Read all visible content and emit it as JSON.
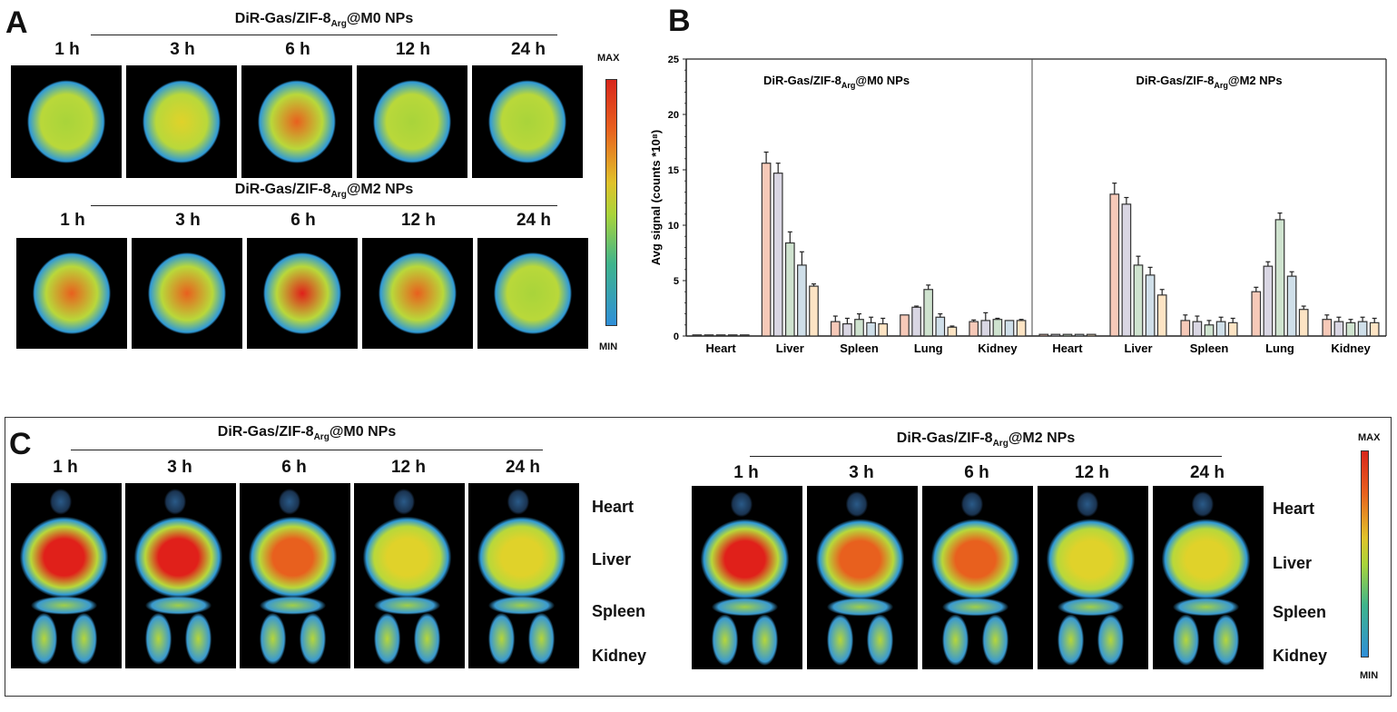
{
  "panel_a": {
    "letter": "A",
    "groups": [
      {
        "title_main": "DiR-Gas/ZIF-8",
        "title_sub": "Arg",
        "title_tail": "@M0 NPs",
        "times": [
          "1 h",
          "3 h",
          "6 h",
          "12 h",
          "24 h"
        ],
        "intensity": [
          0.45,
          0.6,
          0.75,
          0.4,
          0.35
        ]
      },
      {
        "title_main": "DiR-Gas/ZIF-8",
        "title_sub": "Arg",
        "title_tail": "@M2 NPs",
        "times": [
          "1 h",
          "3 h",
          "6 h",
          "12 h",
          "24 h"
        ],
        "intensity": [
          0.7,
          0.85,
          0.95,
          0.8,
          0.4
        ]
      }
    ],
    "scale": {
      "max_label": "MAX",
      "min_label": "MIN"
    }
  },
  "panel_b": {
    "letter": "B"
  },
  "panel_c": {
    "letter": "C",
    "groups": [
      {
        "title_main": "DiR-Gas/ZIF-8",
        "title_sub": "Arg",
        "title_tail": "@M0 NPs",
        "times": [
          "1 h",
          "3 h",
          "6 h",
          "12 h",
          "24 h"
        ],
        "liver_intensity": [
          1.0,
          0.95,
          0.8,
          0.65,
          0.55
        ]
      },
      {
        "title_main": "DiR-Gas/ZIF-8",
        "title_sub": "Arg",
        "title_tail": "@M2 NPs",
        "times": [
          "1 h",
          "3 h",
          "6 h",
          "12 h",
          "24 h"
        ],
        "liver_intensity": [
          0.9,
          0.85,
          0.7,
          0.6,
          0.5
        ]
      }
    ],
    "organs": [
      "Heart",
      "Liver",
      "Spleen",
      "Kidney"
    ],
    "scale": {
      "max_label": "MAX",
      "min_label": "MIN"
    }
  },
  "chart_data": {
    "type": "bar",
    "title": "",
    "xlabel": "",
    "ylabel": "Avg signal (counts *10⁸)",
    "ylim": [
      0,
      25
    ],
    "yticks": [
      0,
      5,
      10,
      15,
      20,
      25
    ],
    "grid": false,
    "legend": "none",
    "series_names": [
      "1 h",
      "3 h",
      "6 h",
      "12 h",
      "24 h"
    ],
    "series_colors": [
      "#f6c9b8",
      "#d9d6e3",
      "#cfe3cf",
      "#cfdfe9",
      "#fde4c4"
    ],
    "series_edge_colors": [
      "#c0573a",
      "#555566",
      "#4d7a52",
      "#4f6f86",
      "#c08a44"
    ],
    "panels": [
      {
        "name": "DiR-Gas/ZIF-8Arg@M0 NPs",
        "title_main": "DiR-Gas/ZIF-8",
        "title_sub": "Arg",
        "title_tail": "@M0 NPs",
        "categories": [
          "Heart",
          "Liver",
          "Spleen",
          "Lung",
          "Kidney"
        ],
        "values": [
          [
            0.1,
            0.1,
            0.1,
            0.1,
            0.1
          ],
          [
            15.6,
            14.7,
            8.4,
            6.4,
            4.5
          ],
          [
            1.3,
            1.1,
            1.5,
            1.2,
            1.1
          ],
          [
            1.9,
            2.6,
            4.2,
            1.7,
            0.8
          ],
          [
            1.3,
            1.4,
            1.5,
            1.4,
            1.4
          ]
        ],
        "errors": [
          [
            0.05,
            0.05,
            0.05,
            0.05,
            0.05
          ],
          [
            1.0,
            0.9,
            1.0,
            1.2,
            0.2
          ],
          [
            0.5,
            0.5,
            0.5,
            0.5,
            0.5
          ],
          [
            0.05,
            0.1,
            0.4,
            0.3,
            0.1
          ],
          [
            0.15,
            0.7,
            0.1,
            0.05,
            0.1
          ]
        ]
      },
      {
        "name": "DiR-Gas/ZIF-8Arg@M2 NPs",
        "title_main": "DiR-Gas/ZIF-8",
        "title_sub": "Arg",
        "title_tail": "@M2 NPs",
        "categories": [
          "Heart",
          "Liver",
          "Spleen",
          "Lung",
          "Kidney"
        ],
        "values": [
          [
            0.15,
            0.15,
            0.15,
            0.15,
            0.15
          ],
          [
            12.8,
            11.9,
            6.4,
            5.5,
            3.7
          ],
          [
            1.4,
            1.3,
            1.0,
            1.3,
            1.2
          ],
          [
            4.0,
            6.3,
            10.5,
            5.4,
            2.4
          ],
          [
            1.5,
            1.3,
            1.2,
            1.3,
            1.2
          ]
        ],
        "errors": [
          [
            0.05,
            0.05,
            0.05,
            0.05,
            0.05
          ],
          [
            1.0,
            0.6,
            0.8,
            0.7,
            0.5
          ],
          [
            0.5,
            0.5,
            0.4,
            0.4,
            0.4
          ],
          [
            0.4,
            0.4,
            0.6,
            0.4,
            0.3
          ],
          [
            0.4,
            0.4,
            0.3,
            0.4,
            0.4
          ]
        ]
      }
    ]
  }
}
